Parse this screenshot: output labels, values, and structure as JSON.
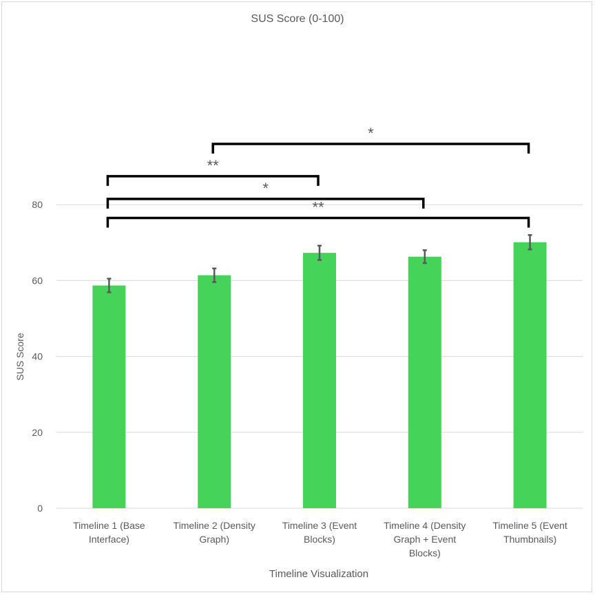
{
  "chart_data": {
    "type": "bar",
    "title": "SUS Score (0-100)",
    "xlabel": "Timeline Visualization",
    "ylabel": "SUS Score",
    "ylim": [
      0,
      100
    ],
    "yticks": [
      0,
      20,
      40,
      60,
      80
    ],
    "grid": true,
    "categories": [
      [
        "Timeline 1 (Base",
        "Interface)"
      ],
      [
        "Timeline 2 (Density",
        "Graph)"
      ],
      [
        "Timeline 3 (Event",
        "Blocks)"
      ],
      [
        "Timeline 4 (Density",
        "Graph + Event",
        "Blocks)"
      ],
      [
        "Timeline 5 (Event",
        "Thumbnails)"
      ]
    ],
    "values": [
      58.7,
      61.4,
      67.3,
      66.3,
      70.1
    ],
    "errors": [
      1.8,
      1.8,
      1.9,
      1.7,
      1.9
    ],
    "bar_color": "#46d35a",
    "error_color": "#595959",
    "significance": [
      {
        "from": 1,
        "to": 4,
        "label": "*",
        "level": 96
      },
      {
        "from": 0,
        "to": 2,
        "label": "**",
        "level": 87.5
      },
      {
        "from": 0,
        "to": 3,
        "label": "*",
        "level": 81.5
      },
      {
        "from": 0,
        "to": 4,
        "label": "**",
        "level": 76.5
      }
    ]
  }
}
